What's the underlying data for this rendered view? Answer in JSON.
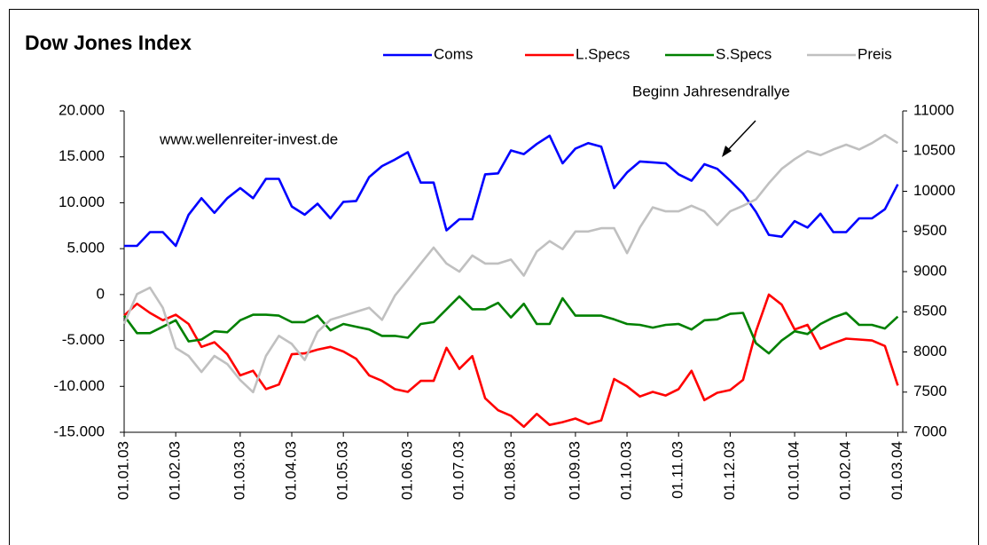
{
  "chart_data": {
    "type": "line",
    "title": "Dow Jones Index",
    "annotations": [
      "www.wellenreiter-invest.de",
      "Beginn Jahresendrallye"
    ],
    "categories": [
      "01.01.03",
      null,
      null,
      null,
      "01.02.03",
      null,
      null,
      null,
      null,
      "01.03.03",
      null,
      null,
      null,
      "01.04.03",
      null,
      null,
      null,
      "01.05.03",
      null,
      null,
      null,
      null,
      "01.06.03",
      null,
      null,
      null,
      "01.07.03",
      null,
      null,
      null,
      "01.08.03",
      null,
      null,
      null,
      null,
      "01.09.03",
      null,
      null,
      null,
      "01.10.03",
      null,
      null,
      null,
      "01.11.03",
      null,
      null,
      null,
      "01.12.03",
      null,
      null,
      null,
      null,
      "01.01.04",
      null,
      null,
      null,
      "01.02.04",
      null,
      null,
      null,
      "01.03.04"
    ],
    "series": [
      {
        "name": "Coms",
        "color": "#0000ff",
        "values": [
          5300,
          5300,
          6800,
          6800,
          5300,
          8700,
          10500,
          8900,
          10500,
          11600,
          10500,
          12600,
          12600,
          9600,
          8700,
          9900,
          8300,
          10100,
          10200,
          12800,
          14000,
          14700,
          15500,
          12200,
          12200,
          7000,
          8200,
          8200,
          13100,
          13200,
          15700,
          15300,
          16400,
          17300,
          14300,
          15900,
          16500,
          16100,
          11600,
          13300,
          14500,
          14400,
          14300,
          13100,
          12400,
          14200,
          13700,
          12400,
          11000,
          9000,
          6500,
          6300,
          8000,
          7300,
          8800,
          6800,
          6800,
          8300,
          8300,
          9300,
          12000
        ]
      },
      {
        "name": "L.Specs",
        "color": "#ff0000",
        "values": [
          -2300,
          -1000,
          -2000,
          -2800,
          -2200,
          -3200,
          -5700,
          -5200,
          -6500,
          -8800,
          -8300,
          -10300,
          -9800,
          -6500,
          -6400,
          -6000,
          -5700,
          -6200,
          -7000,
          -8800,
          -9400,
          -10300,
          -10600,
          -9400,
          -9400,
          -5800,
          -8100,
          -6700,
          -11300,
          -12600,
          -13200,
          -14400,
          -13000,
          -14200,
          -13900,
          -13500,
          -14100,
          -13700,
          -9200,
          -10000,
          -11100,
          -10600,
          -11000,
          -10300,
          -8300,
          -11500,
          -10700,
          -10400,
          -9300,
          -4000,
          0,
          -1100,
          -3800,
          -3300,
          -5900,
          -5300,
          -4800,
          -4900,
          -5000,
          -5600,
          -9900
        ]
      },
      {
        "name": "S.Specs",
        "color": "#008000",
        "values": [
          -2300,
          -4200,
          -4200,
          -3500,
          -2800,
          -5100,
          -4900,
          -4000,
          -4100,
          -2800,
          -2200,
          -2200,
          -2300,
          -3000,
          -3000,
          -2300,
          -3900,
          -3200,
          -3500,
          -3800,
          -4500,
          -4500,
          -4700,
          -3200,
          -3000,
          -1600,
          -200,
          -1600,
          -1600,
          -900,
          -2500,
          -1000,
          -3200,
          -3200,
          -400,
          -2300,
          -2300,
          -2300,
          -2700,
          -3200,
          -3300,
          -3600,
          -3300,
          -3200,
          -3800,
          -2800,
          -2700,
          -2100,
          -2000,
          -5300,
          -6400,
          -5000,
          -4000,
          -4300,
          -3200,
          -2500,
          -2000,
          -3300,
          -3300,
          -3700,
          -2400
        ]
      },
      {
        "name": "Preis",
        "color": "#c0c0c0",
        "axis": "y2",
        "values": [
          8350,
          8720,
          8800,
          8550,
          8050,
          7950,
          7750,
          7950,
          7850,
          7650,
          7500,
          7950,
          8200,
          8100,
          7900,
          8250,
          8400,
          8450,
          8500,
          8550,
          8400,
          8700,
          8900,
          9100,
          9300,
          9100,
          9000,
          9200,
          9100,
          9100,
          9150,
          8950,
          9250,
          9380,
          9280,
          9500,
          9500,
          9540,
          9540,
          9230,
          9550,
          9800,
          9750,
          9750,
          9820,
          9750,
          9580,
          9750,
          9820,
          9900,
          10100,
          10280,
          10400,
          10500,
          10450,
          10520,
          10580,
          10520,
          10600,
          10700,
          10600
        ]
      }
    ],
    "ylim": [
      -15000,
      20000
    ],
    "yticks": [
      {
        "value": 20000,
        "label": "20.000"
      },
      {
        "value": 15000,
        "label": "15.000"
      },
      {
        "value": 10000,
        "label": "10.000"
      },
      {
        "value": 5000,
        "label": "5.000"
      },
      0,
      {
        "value": -5000,
        "label": "-5.000"
      },
      {
        "value": -10000,
        "label": "-10.000"
      },
      {
        "value": -15000,
        "label": "-15.000"
      }
    ],
    "y2lim": [
      7000,
      11000
    ],
    "y2ticks": [
      7000,
      7500,
      8000,
      8500,
      9000,
      9500,
      10000,
      10500,
      11000
    ],
    "grid": false,
    "legend": "top"
  }
}
